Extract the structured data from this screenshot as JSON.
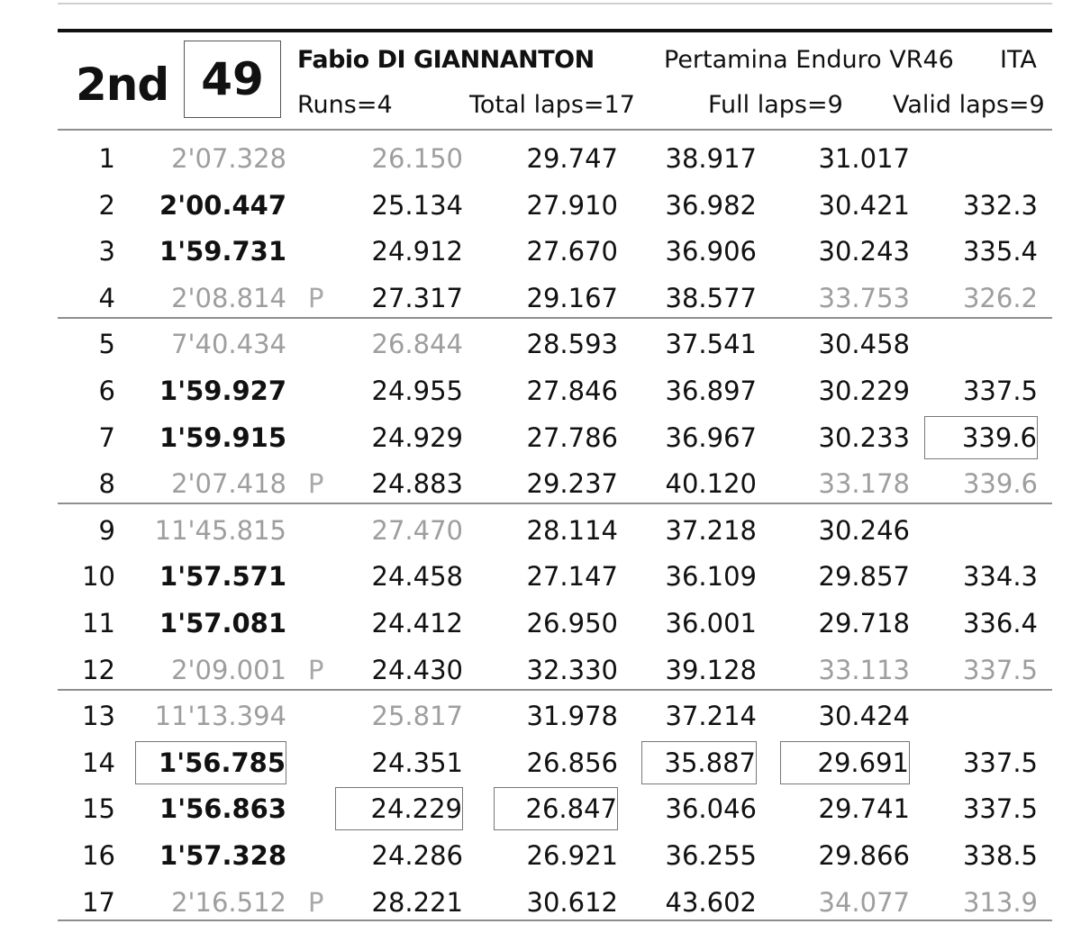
{
  "rider": {
    "position": "2nd",
    "number": "49",
    "name": "Fabio DI GIANNANTON",
    "team": "Pertamina Enduro VR46",
    "nation": "ITA",
    "runs": "Runs=4",
    "total_laps": "Total laps=17",
    "full_laps": "Full laps=9",
    "valid_laps": "Valid laps=9"
  },
  "colors": {
    "text": "#111111",
    "muted": "#9e9e9e",
    "rule": "#8e8e8e",
    "header_rule": "#111111"
  },
  "laps": [
    {
      "lap": "1",
      "time": "2'07.328",
      "pit": "",
      "s1": "26.150",
      "s2": "29.747",
      "s3": "38.917",
      "s4": "31.017",
      "speed": "",
      "time_bold": false,
      "time_gray": true,
      "s1_gray": true,
      "s2_gray": false,
      "s3_gray": false,
      "s4_gray": false,
      "speed_gray": false
    },
    {
      "lap": "2",
      "time": "2'00.447",
      "pit": "",
      "s1": "25.134",
      "s2": "27.910",
      "s3": "36.982",
      "s4": "30.421",
      "speed": "332.3",
      "time_bold": true,
      "time_gray": false,
      "s1_gray": false,
      "s2_gray": false,
      "s3_gray": false,
      "s4_gray": false,
      "speed_gray": false
    },
    {
      "lap": "3",
      "time": "1'59.731",
      "pit": "",
      "s1": "24.912",
      "s2": "27.670",
      "s3": "36.906",
      "s4": "30.243",
      "speed": "335.4",
      "time_bold": true,
      "time_gray": false,
      "s1_gray": false,
      "s2_gray": false,
      "s3_gray": false,
      "s4_gray": false,
      "speed_gray": false
    },
    {
      "lap": "4",
      "time": "2'08.814",
      "pit": "P",
      "s1": "27.317",
      "s2": "29.167",
      "s3": "38.577",
      "s4": "33.753",
      "speed": "326.2",
      "time_bold": false,
      "time_gray": true,
      "s1_gray": false,
      "s2_gray": false,
      "s3_gray": false,
      "s4_gray": true,
      "speed_gray": true
    },
    {
      "lap": "5",
      "time": "7'40.434",
      "pit": "",
      "s1": "26.844",
      "s2": "28.593",
      "s3": "37.541",
      "s4": "30.458",
      "speed": "",
      "time_bold": false,
      "time_gray": true,
      "s1_gray": true,
      "s2_gray": false,
      "s3_gray": false,
      "s4_gray": false,
      "speed_gray": false
    },
    {
      "lap": "6",
      "time": "1'59.927",
      "pit": "",
      "s1": "24.955",
      "s2": "27.846",
      "s3": "36.897",
      "s4": "30.229",
      "speed": "337.5",
      "time_bold": true,
      "time_gray": false,
      "s1_gray": false,
      "s2_gray": false,
      "s3_gray": false,
      "s4_gray": false,
      "speed_gray": false
    },
    {
      "lap": "7",
      "time": "1'59.915",
      "pit": "",
      "s1": "24.929",
      "s2": "27.786",
      "s3": "36.967",
      "s4": "30.233",
      "speed": "339.6",
      "time_bold": true,
      "time_gray": false,
      "s1_gray": false,
      "s2_gray": false,
      "s3_gray": false,
      "s4_gray": false,
      "speed_gray": false
    },
    {
      "lap": "8",
      "time": "2'07.418",
      "pit": "P",
      "s1": "24.883",
      "s2": "29.237",
      "s3": "40.120",
      "s4": "33.178",
      "speed": "339.6",
      "time_bold": false,
      "time_gray": true,
      "s1_gray": false,
      "s2_gray": false,
      "s3_gray": false,
      "s4_gray": true,
      "speed_gray": true
    },
    {
      "lap": "9",
      "time": "11'45.815",
      "pit": "",
      "s1": "27.470",
      "s2": "28.114",
      "s3": "37.218",
      "s4": "30.246",
      "speed": "",
      "time_bold": false,
      "time_gray": true,
      "s1_gray": true,
      "s2_gray": false,
      "s3_gray": false,
      "s4_gray": false,
      "speed_gray": false
    },
    {
      "lap": "10",
      "time": "1'57.571",
      "pit": "",
      "s1": "24.458",
      "s2": "27.147",
      "s3": "36.109",
      "s4": "29.857",
      "speed": "334.3",
      "time_bold": true,
      "time_gray": false,
      "s1_gray": false,
      "s2_gray": false,
      "s3_gray": false,
      "s4_gray": false,
      "speed_gray": false
    },
    {
      "lap": "11",
      "time": "1'57.081",
      "pit": "",
      "s1": "24.412",
      "s2": "26.950",
      "s3": "36.001",
      "s4": "29.718",
      "speed": "336.4",
      "time_bold": true,
      "time_gray": false,
      "s1_gray": false,
      "s2_gray": false,
      "s3_gray": false,
      "s4_gray": false,
      "speed_gray": false
    },
    {
      "lap": "12",
      "time": "2'09.001",
      "pit": "P",
      "s1": "24.430",
      "s2": "32.330",
      "s3": "39.128",
      "s4": "33.113",
      "speed": "337.5",
      "time_bold": false,
      "time_gray": true,
      "s1_gray": false,
      "s2_gray": false,
      "s3_gray": false,
      "s4_gray": true,
      "speed_gray": true
    },
    {
      "lap": "13",
      "time": "11'13.394",
      "pit": "",
      "s1": "25.817",
      "s2": "31.978",
      "s3": "37.214",
      "s4": "30.424",
      "speed": "",
      "time_bold": false,
      "time_gray": true,
      "s1_gray": true,
      "s2_gray": false,
      "s3_gray": false,
      "s4_gray": false,
      "speed_gray": false
    },
    {
      "lap": "14",
      "time": "1'56.785",
      "pit": "",
      "s1": "24.351",
      "s2": "26.856",
      "s3": "35.887",
      "s4": "29.691",
      "speed": "337.5",
      "time_bold": true,
      "time_gray": false,
      "s1_gray": false,
      "s2_gray": false,
      "s3_gray": false,
      "s4_gray": false,
      "speed_gray": false
    },
    {
      "lap": "15",
      "time": "1'56.863",
      "pit": "",
      "s1": "24.229",
      "s2": "26.847",
      "s3": "36.046",
      "s4": "29.741",
      "speed": "337.5",
      "time_bold": true,
      "time_gray": false,
      "s1_gray": false,
      "s2_gray": false,
      "s3_gray": false,
      "s4_gray": false,
      "speed_gray": false
    },
    {
      "lap": "16",
      "time": "1'57.328",
      "pit": "",
      "s1": "24.286",
      "s2": "26.921",
      "s3": "36.255",
      "s4": "29.866",
      "speed": "338.5",
      "time_bold": true,
      "time_gray": false,
      "s1_gray": false,
      "s2_gray": false,
      "s3_gray": false,
      "s4_gray": false,
      "speed_gray": false
    },
    {
      "lap": "17",
      "time": "2'16.512",
      "pit": "P",
      "s1": "28.221",
      "s2": "30.612",
      "s3": "43.602",
      "s4": "34.077",
      "speed": "313.9",
      "time_bold": false,
      "time_gray": true,
      "s1_gray": false,
      "s2_gray": false,
      "s3_gray": false,
      "s4_gray": true,
      "speed_gray": true
    }
  ],
  "best_marks": [
    {
      "lap": "7",
      "field": "speed"
    },
    {
      "lap": "14",
      "field": "time"
    },
    {
      "lap": "14",
      "field": "s3"
    },
    {
      "lap": "14",
      "field": "s4"
    },
    {
      "lap": "15",
      "field": "s1"
    },
    {
      "lap": "15",
      "field": "s2"
    }
  ]
}
